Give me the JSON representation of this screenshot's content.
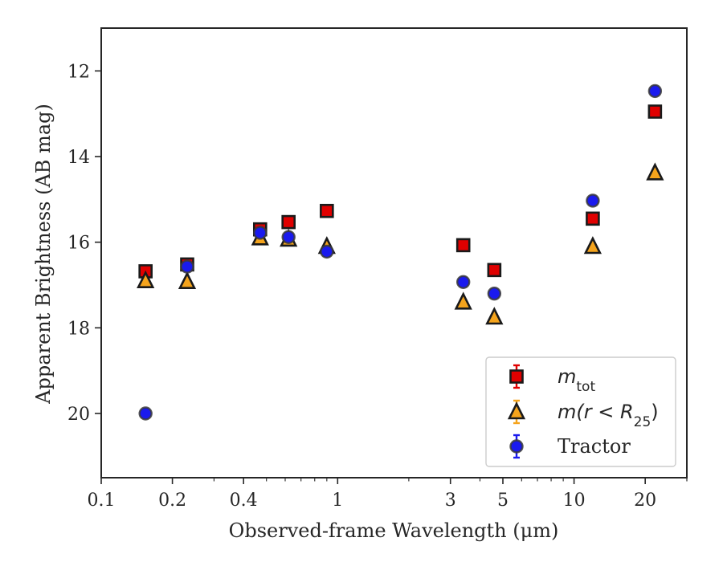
{
  "chart_data": {
    "type": "scatter",
    "title": "",
    "xlabel": "Observed-frame Wavelength (μm)",
    "ylabel": "Apparent Brightness (AB mag)",
    "xscale": "log",
    "xlim": [
      0.1,
      30
    ],
    "ylim": [
      21.5,
      11
    ],
    "y_inverted": true,
    "grid": false,
    "legend_position": "lower-right",
    "x_ticks": [
      0.1,
      0.2,
      0.4,
      1,
      3,
      5,
      10,
      20
    ],
    "x_tick_labels": [
      "0.1",
      "0.2",
      "0.4",
      "1",
      "3",
      "5",
      "10",
      "20"
    ],
    "y_ticks": [
      12,
      14,
      16,
      18,
      20
    ],
    "y_tick_labels": [
      "12",
      "14",
      "16",
      "18",
      "20"
    ],
    "series": [
      {
        "name": "m_tot",
        "marker": "square",
        "color": "#e00000",
        "errorbar_color": "#e00000",
        "x": [
          0.154,
          0.231,
          0.47,
          0.62,
          0.9,
          3.4,
          4.6,
          12.0,
          22.0
        ],
        "y": [
          16.68,
          16.52,
          15.7,
          15.53,
          15.27,
          16.07,
          16.65,
          15.45,
          12.95
        ]
      },
      {
        "name": "m(r < R25)",
        "marker": "triangle",
        "color": "#f5a41c",
        "errorbar_color": "#f5a41c",
        "x": [
          0.154,
          0.231,
          0.47,
          0.62,
          0.9,
          3.4,
          4.6,
          12.0,
          22.0
        ],
        "y": [
          16.9,
          16.92,
          15.9,
          15.93,
          16.1,
          17.4,
          17.75,
          16.1,
          14.38
        ]
      },
      {
        "name": "Tractor",
        "marker": "circle",
        "color": "#1a1aee",
        "errorbar_color": "#1a1aee",
        "x": [
          0.154,
          0.231,
          0.47,
          0.62,
          0.9,
          3.4,
          4.6,
          12.0,
          22.0
        ],
        "y": [
          20.0,
          16.57,
          15.78,
          15.88,
          16.22,
          16.93,
          17.2,
          15.03,
          12.47
        ]
      }
    ],
    "legend": [
      {
        "label_main": "m",
        "label_sub": "tot",
        "label_math_tail": ""
      },
      {
        "label_main": "m(r < R",
        "label_sub": "25",
        "label_math_tail": ")"
      },
      {
        "label_main": "Tractor",
        "label_sub": "",
        "label_math_tail": ""
      }
    ]
  }
}
